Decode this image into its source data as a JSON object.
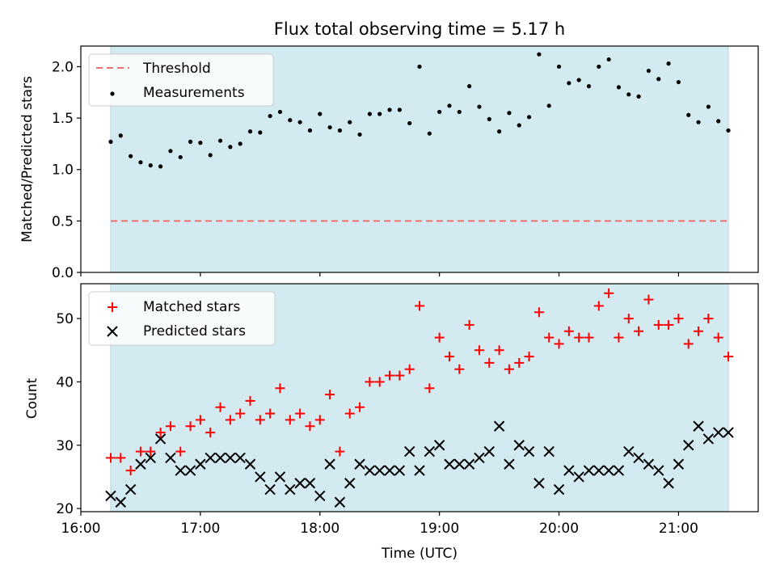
{
  "chart_data": [
    {
      "type": "scatter",
      "title": "Flux total observing time = 5.17 h",
      "xlabel": "",
      "ylabel": "Matched/Predicted stars",
      "xlim": [
        "16:00",
        "21:40"
      ],
      "ylim": [
        0,
        2.2
      ],
      "yticks": [
        0.0,
        0.5,
        1.0,
        1.5,
        2.0
      ],
      "ytick_labels": [
        "0.0",
        "0.5",
        "1.0",
        "1.5",
        "2.0"
      ],
      "shaded_region": {
        "x_start": "16:15",
        "x_end": "21:25",
        "color": "#d4eaf1"
      },
      "legend": {
        "location": "upper left",
        "entries": [
          "Threshold",
          "Measurements"
        ]
      },
      "threshold": {
        "name": "Threshold",
        "value": 0.5,
        "x_start": "16:15",
        "x_end": "21:25",
        "color": "#f07070",
        "style": "dashed"
      },
      "series": [
        {
          "name": "Measurements",
          "marker": "dot",
          "color": "#000000",
          "x": [
            "16:15",
            "16:20",
            "16:25",
            "16:30",
            "16:35",
            "16:40",
            "16:45",
            "16:50",
            "16:55",
            "17:00",
            "17:05",
            "17:10",
            "17:15",
            "17:20",
            "17:25",
            "17:30",
            "17:35",
            "17:40",
            "17:45",
            "17:50",
            "17:55",
            "18:00",
            "18:05",
            "18:10",
            "18:15",
            "18:20",
            "18:25",
            "18:30",
            "18:35",
            "18:40",
            "18:45",
            "18:50",
            "18:55",
            "19:00",
            "19:05",
            "19:10",
            "19:15",
            "19:20",
            "19:25",
            "19:30",
            "19:35",
            "19:40",
            "19:45",
            "19:50",
            "19:55",
            "20:00",
            "20:05",
            "20:10",
            "20:15",
            "20:20",
            "20:25",
            "20:30",
            "20:35",
            "20:40",
            "20:45",
            "20:50",
            "20:55",
            "21:00",
            "21:05",
            "21:10",
            "21:15",
            "21:20",
            "21:25"
          ],
          "y": [
            1.27,
            1.33,
            1.13,
            1.07,
            1.04,
            1.03,
            1.18,
            1.12,
            1.27,
            1.26,
            1.14,
            1.28,
            1.22,
            1.25,
            1.37,
            1.36,
            1.52,
            1.56,
            1.48,
            1.46,
            1.38,
            1.54,
            1.41,
            1.38,
            1.46,
            1.34,
            1.54,
            1.54,
            1.58,
            1.58,
            1.45,
            2.0,
            1.35,
            1.56,
            1.62,
            1.56,
            1.81,
            1.61,
            1.49,
            1.37,
            1.55,
            1.43,
            1.51,
            2.12,
            1.62,
            2.0,
            1.84,
            1.87,
            1.81,
            2.0,
            2.07,
            1.8,
            1.73,
            1.71,
            1.96,
            1.88,
            2.03,
            1.85,
            1.53,
            1.46,
            1.61,
            1.47,
            1.38
          ]
        }
      ]
    },
    {
      "type": "scatter",
      "title": "",
      "xlabel": "Time (UTC)",
      "ylabel": "Count",
      "xlim": [
        "16:00",
        "21:40"
      ],
      "ylim": [
        19.5,
        55.5
      ],
      "xticks": [
        "16:00",
        "17:00",
        "18:00",
        "19:00",
        "20:00",
        "21:00"
      ],
      "yticks": [
        20,
        30,
        40,
        50
      ],
      "ytick_labels": [
        "20",
        "30",
        "40",
        "50"
      ],
      "shaded_region": {
        "x_start": "16:15",
        "x_end": "21:25",
        "color": "#d4eaf1"
      },
      "legend": {
        "location": "upper left",
        "entries": [
          "Matched stars",
          "Predicted stars"
        ]
      },
      "series": [
        {
          "name": "Matched stars",
          "marker": "plus",
          "color": "#ff0000",
          "x": [
            "16:15",
            "16:20",
            "16:25",
            "16:30",
            "16:35",
            "16:40",
            "16:45",
            "16:50",
            "16:55",
            "17:00",
            "17:05",
            "17:10",
            "17:15",
            "17:20",
            "17:25",
            "17:30",
            "17:35",
            "17:40",
            "17:45",
            "17:50",
            "17:55",
            "18:00",
            "18:05",
            "18:10",
            "18:15",
            "18:20",
            "18:25",
            "18:30",
            "18:35",
            "18:40",
            "18:45",
            "18:50",
            "18:55",
            "19:00",
            "19:05",
            "19:10",
            "19:15",
            "19:20",
            "19:25",
            "19:30",
            "19:35",
            "19:40",
            "19:45",
            "19:50",
            "19:55",
            "20:00",
            "20:05",
            "20:10",
            "20:15",
            "20:20",
            "20:25",
            "20:30",
            "20:35",
            "20:40",
            "20:45",
            "20:50",
            "20:55",
            "21:00",
            "21:05",
            "21:10",
            "21:15",
            "21:20",
            "21:25"
          ],
          "y": [
            28,
            28,
            26,
            29,
            29,
            32,
            33,
            29,
            33,
            34,
            32,
            36,
            34,
            35,
            37,
            34,
            35,
            39,
            34,
            35,
            33,
            34,
            38,
            29,
            35,
            36,
            40,
            40,
            41,
            41,
            42,
            52,
            39,
            47,
            44,
            42,
            49,
            45,
            43,
            45,
            42,
            43,
            44,
            51,
            47,
            46,
            48,
            47,
            47,
            52,
            54,
            47,
            50,
            48,
            53,
            49,
            49,
            50,
            46,
            48,
            50,
            47,
            44
          ]
        },
        {
          "name": "Predicted stars",
          "marker": "x",
          "color": "#000000",
          "x": [
            "16:15",
            "16:20",
            "16:25",
            "16:30",
            "16:35",
            "16:40",
            "16:45",
            "16:50",
            "16:55",
            "17:00",
            "17:05",
            "17:10",
            "17:15",
            "17:20",
            "17:25",
            "17:30",
            "17:35",
            "17:40",
            "17:45",
            "17:50",
            "17:55",
            "18:00",
            "18:05",
            "18:10",
            "18:15",
            "18:20",
            "18:25",
            "18:30",
            "18:35",
            "18:40",
            "18:45",
            "18:50",
            "18:55",
            "19:00",
            "19:05",
            "19:10",
            "19:15",
            "19:20",
            "19:25",
            "19:30",
            "19:35",
            "19:40",
            "19:45",
            "19:50",
            "19:55",
            "20:00",
            "20:05",
            "20:10",
            "20:15",
            "20:20",
            "20:25",
            "20:30",
            "20:35",
            "20:40",
            "20:45",
            "20:50",
            "20:55",
            "21:00",
            "21:05",
            "21:10",
            "21:15",
            "21:20",
            "21:25"
          ],
          "y": [
            22,
            21,
            23,
            27,
            28,
            31,
            28,
            26,
            26,
            27,
            28,
            28,
            28,
            28,
            27,
            25,
            23,
            25,
            23,
            24,
            24,
            22,
            27,
            21,
            24,
            27,
            26,
            26,
            26,
            26,
            29,
            26,
            29,
            30,
            27,
            27,
            27,
            28,
            29,
            33,
            27,
            30,
            29,
            24,
            29,
            23,
            26,
            25,
            26,
            26,
            26,
            26,
            29,
            28,
            27,
            26,
            24,
            27,
            30,
            33,
            31,
            32,
            32
          ]
        }
      ]
    }
  ]
}
